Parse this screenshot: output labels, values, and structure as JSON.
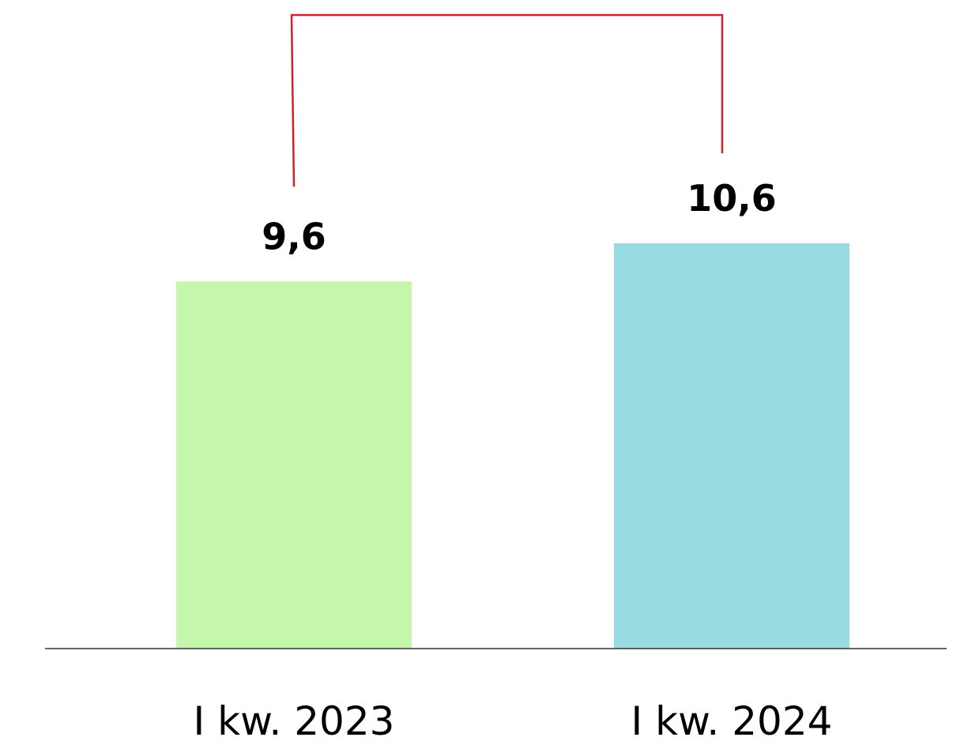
{
  "chart_data": {
    "type": "bar",
    "categories": [
      "I kw. 2023",
      "I kw. 2024"
    ],
    "values": [
      9.6,
      10.6
    ],
    "value_labels": [
      "9,6",
      "10,6"
    ],
    "title": "",
    "xlabel": "",
    "ylabel": "",
    "ylim": [
      0,
      12
    ],
    "grid": false,
    "legend": "none",
    "bar_colors": [
      "#c4f7ab",
      "#98dbe0"
    ],
    "comparison_bracket": {
      "from_category": "I kw. 2023",
      "to_category": "I kw. 2024",
      "color": "#d42029"
    },
    "axis_color": "#333333"
  }
}
